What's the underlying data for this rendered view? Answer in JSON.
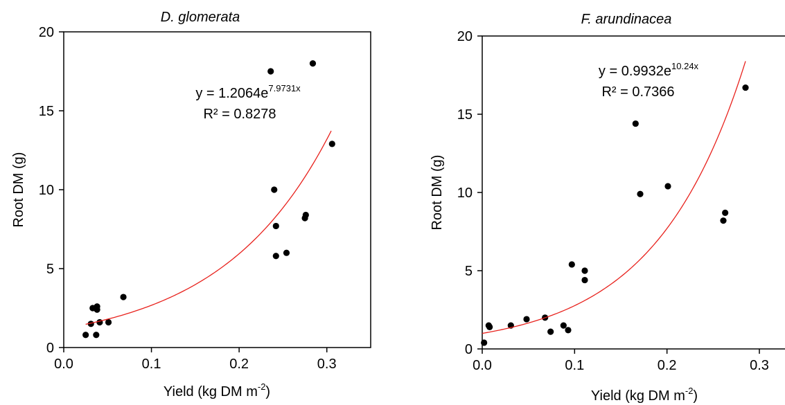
{
  "chart_data": [
    {
      "type": "scatter",
      "title": "D. glomerata",
      "xlabel": "Yield (kg DM m",
      "xlabel_sup": "-2",
      "xlabel_end": ")",
      "ylabel": "Root  DM (g)",
      "xlim": [
        0.0,
        0.35
      ],
      "ylim": [
        0,
        20
      ],
      "x_ticks": [
        "0.0",
        "0.1",
        "0.2",
        "0.3"
      ],
      "x_tick_values": [
        0.0,
        0.1,
        0.2,
        0.3
      ],
      "y_ticks": [
        "0",
        "5",
        "10",
        "15",
        "20"
      ],
      "y_tick_values": [
        0,
        5,
        10,
        15,
        20
      ],
      "grid": false,
      "point_color": "#000000",
      "points": [
        {
          "x": 0.025,
          "y": 0.8
        },
        {
          "x": 0.031,
          "y": 1.5
        },
        {
          "x": 0.033,
          "y": 2.5
        },
        {
          "x": 0.037,
          "y": 0.8
        },
        {
          "x": 0.038,
          "y": 2.6
        },
        {
          "x": 0.038,
          "y": 2.4
        },
        {
          "x": 0.041,
          "y": 1.6
        },
        {
          "x": 0.051,
          "y": 1.6
        },
        {
          "x": 0.068,
          "y": 3.2
        },
        {
          "x": 0.236,
          "y": 17.5
        },
        {
          "x": 0.24,
          "y": 10.0
        },
        {
          "x": 0.242,
          "y": 7.7
        },
        {
          "x": 0.242,
          "y": 5.8
        },
        {
          "x": 0.254,
          "y": 6.0
        },
        {
          "x": 0.275,
          "y": 8.2
        },
        {
          "x": 0.276,
          "y": 8.4
        },
        {
          "x": 0.284,
          "y": 18.0
        },
        {
          "x": 0.306,
          "y": 12.9
        }
      ],
      "trendline": {
        "type": "exponential",
        "a": 1.2064,
        "b": 7.9731,
        "x_range": [
          0.025,
          0.305
        ],
        "color": "#e8211c",
        "equation_prefix": "y = 1.2064e",
        "equation_exp": "7.9731x",
        "r2_label": "R² = 0.8278"
      }
    },
    {
      "type": "scatter",
      "title": "F. arundinacea",
      "xlabel": "Yield (kg DM m",
      "xlabel_sup": "-2",
      "xlabel_end": ")",
      "ylabel": "Root  DM (g)",
      "xlim": [
        0.0,
        0.33
      ],
      "ylim": [
        0,
        20
      ],
      "x_ticks": [
        "0.0",
        "0.1",
        "0.2",
        "0.3"
      ],
      "x_tick_values": [
        0.0,
        0.1,
        0.2,
        0.3
      ],
      "y_ticks": [
        "0",
        "5",
        "10",
        "15",
        "20"
      ],
      "y_tick_values": [
        0,
        5,
        10,
        15,
        20
      ],
      "grid": false,
      "point_color": "#000000",
      "points": [
        {
          "x": 0.002,
          "y": 0.4
        },
        {
          "x": 0.007,
          "y": 1.5
        },
        {
          "x": 0.008,
          "y": 1.4
        },
        {
          "x": 0.031,
          "y": 1.5
        },
        {
          "x": 0.048,
          "y": 1.9
        },
        {
          "x": 0.068,
          "y": 2.0
        },
        {
          "x": 0.074,
          "y": 1.1
        },
        {
          "x": 0.088,
          "y": 1.5
        },
        {
          "x": 0.093,
          "y": 1.2
        },
        {
          "x": 0.097,
          "y": 5.4
        },
        {
          "x": 0.111,
          "y": 5.0
        },
        {
          "x": 0.111,
          "y": 4.4
        },
        {
          "x": 0.166,
          "y": 14.4
        },
        {
          "x": 0.171,
          "y": 9.9
        },
        {
          "x": 0.201,
          "y": 10.4
        },
        {
          "x": 0.261,
          "y": 8.2
        },
        {
          "x": 0.263,
          "y": 8.7
        },
        {
          "x": 0.285,
          "y": 16.7
        }
      ],
      "trendline": {
        "type": "exponential",
        "a": 0.9932,
        "b": 10.24,
        "x_range": [
          0.0,
          0.285
        ],
        "color": "#e8211c",
        "equation_prefix": "y = 0.9932e",
        "equation_exp": "10.24x",
        "r2_label": "R² = 0.7366"
      }
    }
  ]
}
